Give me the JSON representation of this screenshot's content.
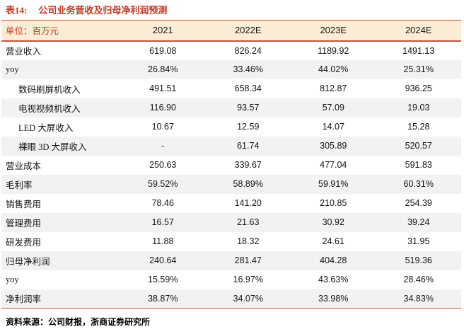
{
  "table": {
    "title_prefix": "表14:",
    "title": "公司业务营收及归母净利润预测",
    "unit_label": "单位：百万元",
    "columns": [
      "2021",
      "2022E",
      "2023E",
      "2024E"
    ],
    "rows": [
      {
        "label": "营业收入",
        "indent": false,
        "values": [
          "619.08",
          "826.24",
          "1189.92",
          "1491.13"
        ]
      },
      {
        "label": "yoy",
        "indent": false,
        "values": [
          "26.84%",
          "33.46%",
          "44.02%",
          "25.31%"
        ]
      },
      {
        "label": "数码刷屏机收入",
        "indent": true,
        "values": [
          "491.51",
          "658.34",
          "812.87",
          "936.25"
        ]
      },
      {
        "label": "电视视频机收入",
        "indent": true,
        "values": [
          "116.90",
          "93.57",
          "57.09",
          "19.03"
        ]
      },
      {
        "label": "LED 大屏收入",
        "indent": true,
        "values": [
          "10.67",
          "12.59",
          "14.07",
          "15.28"
        ]
      },
      {
        "label": "裸眼 3D 大屏收入",
        "indent": true,
        "values": [
          "-",
          "61.74",
          "305.89",
          "520.57"
        ]
      },
      {
        "label": "营业成本",
        "indent": false,
        "values": [
          "250.63",
          "339.67",
          "477.04",
          "591.83"
        ]
      },
      {
        "label": "毛利率",
        "indent": false,
        "values": [
          "59.52%",
          "58.89%",
          "59.91%",
          "60.31%"
        ]
      },
      {
        "label": "销售费用",
        "indent": false,
        "values": [
          "78.46",
          "141.20",
          "210.85",
          "254.39"
        ]
      },
      {
        "label": "管理费用",
        "indent": false,
        "values": [
          "16.57",
          "21.63",
          "30.92",
          "39.24"
        ]
      },
      {
        "label": "研发费用",
        "indent": false,
        "values": [
          "11.88",
          "18.32",
          "24.61",
          "31.95"
        ]
      },
      {
        "label": "归母净利润",
        "indent": false,
        "values": [
          "240.64",
          "281.47",
          "404.28",
          "519.36"
        ]
      },
      {
        "label": "yoy",
        "indent": false,
        "values": [
          "15.59%",
          "16.97%",
          "43.63%",
          "28.46%"
        ]
      },
      {
        "label": "净利润率",
        "indent": false,
        "values": [
          "38.87%",
          "34.07%",
          "33.98%",
          "34.83%"
        ]
      }
    ],
    "source": "资料来源：公司财报，浙商证券研究所"
  },
  "colors": {
    "accent_red": "#bf3a26",
    "rule_red": "#c95240",
    "header_bg": "#fbedd5",
    "zebra_gray": "#f2f2f2",
    "text_dark": "#141414"
  }
}
